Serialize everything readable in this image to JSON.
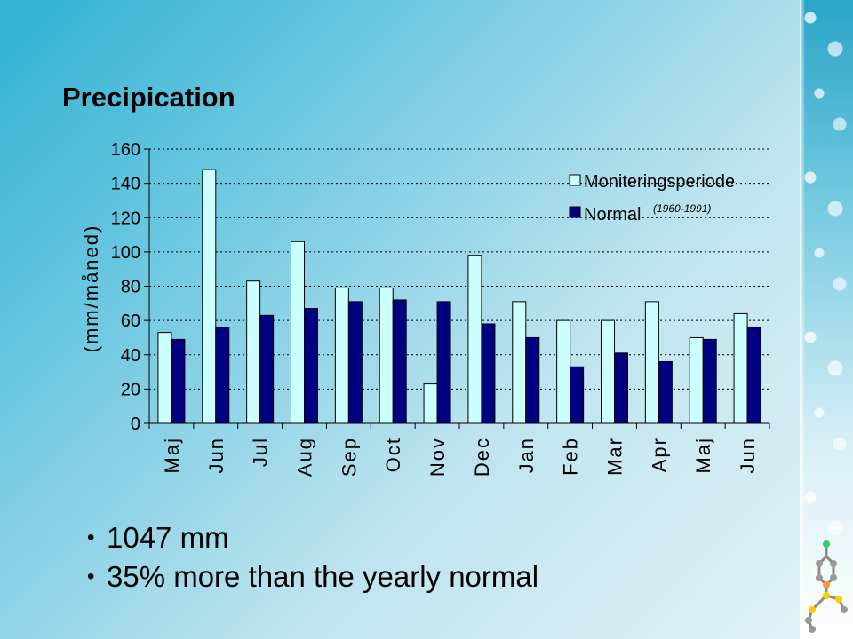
{
  "title": "Precipication",
  "bullets": [
    "1047 mm",
    "35% more than the yearly normal"
  ],
  "chart_data": {
    "type": "bar",
    "categories": [
      "Maj",
      "Jun",
      "Jul",
      "Aug",
      "Sep",
      "Oct",
      "Nov",
      "Dec",
      "Jan",
      "Feb",
      "Mar",
      "Apr",
      "Maj",
      "Jun"
    ],
    "series": [
      {
        "name": "Moniteringsperiode",
        "color": "#ccffff",
        "values": [
          53,
          148,
          83,
          106,
          79,
          79,
          23,
          98,
          71,
          60,
          60,
          71,
          50,
          64
        ]
      },
      {
        "name": "Normal",
        "color": "#000080",
        "values": [
          49,
          56,
          63,
          67,
          71,
          72,
          71,
          58,
          50,
          33,
          41,
          36,
          49,
          56
        ]
      }
    ],
    "legend_note": "(1960-1991)",
    "ylabel": "(mm/måned)",
    "ylim": [
      0,
      160
    ],
    "yticks": [
      0,
      20,
      40,
      60,
      80,
      100,
      120,
      140,
      160
    ],
    "grid": "dotted",
    "legend_position": "top-right"
  }
}
